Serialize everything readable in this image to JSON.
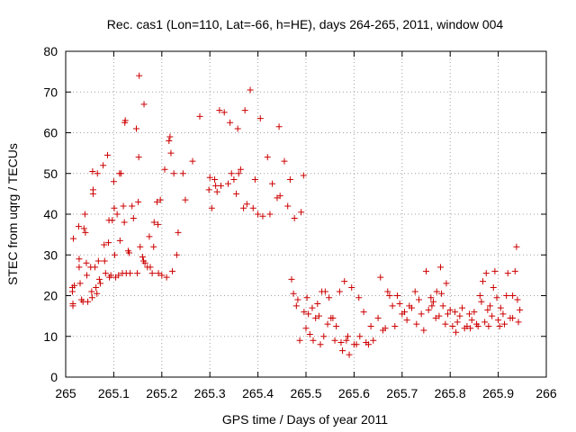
{
  "chart_data": {
    "type": "scatter",
    "title": "Rec. cas1 (Lon=110, Lat=-66, h=HE), days 264-265, 2011, window 004",
    "xlabel": "GPS time / Days of year 2011",
    "ylabel": "STEC from uqrg / TECUs",
    "xlim": [
      265,
      266
    ],
    "ylim": [
      0,
      80
    ],
    "xticks": [
      265,
      265.1,
      265.2,
      265.3,
      265.4,
      265.5,
      265.6,
      265.7,
      265.8,
      265.9,
      266
    ],
    "xtick_labels": [
      "265",
      "265.1",
      "265.2",
      "265.3",
      "265.4",
      "265.5",
      "265.6",
      "265.7",
      "265.8",
      "265.9",
      "266"
    ],
    "yticks": [
      0,
      10,
      20,
      30,
      40,
      50,
      60,
      70,
      80
    ],
    "ytick_labels": [
      "0",
      "10",
      "20",
      "30",
      "40",
      "50",
      "60",
      "70",
      "80"
    ],
    "grid": true,
    "marker": "+",
    "color": "#cc0000",
    "series": [
      {
        "name": "STEC",
        "points": [
          [
            265.016,
            34
          ],
          [
            265.014,
            22
          ],
          [
            265.014,
            21
          ],
          [
            265.015,
            18
          ],
          [
            265.015,
            17.5
          ],
          [
            265.018,
            22.5
          ],
          [
            265.027,
            37
          ],
          [
            265.028,
            29
          ],
          [
            265.028,
            27
          ],
          [
            265.03,
            23
          ],
          [
            265.033,
            19
          ],
          [
            265.036,
            18.5
          ],
          [
            265.038,
            36.5
          ],
          [
            265.04,
            40
          ],
          [
            265.041,
            35.5
          ],
          [
            265.043,
            28
          ],
          [
            265.044,
            25
          ],
          [
            265.046,
            18.5
          ],
          [
            265.052,
            27
          ],
          [
            265.054,
            21
          ],
          [
            265.055,
            19.5
          ],
          [
            265.056,
            50.5
          ],
          [
            265.057,
            46
          ],
          [
            265.057,
            45
          ],
          [
            265.061,
            27
          ],
          [
            265.063,
            22
          ],
          [
            265.065,
            20.5
          ],
          [
            265.066,
            50
          ],
          [
            265.068,
            28.5
          ],
          [
            265.07,
            24
          ],
          [
            265.072,
            23
          ],
          [
            265.078,
            52
          ],
          [
            265.08,
            32.5
          ],
          [
            265.081,
            28.5
          ],
          [
            265.083,
            25.5
          ],
          [
            265.087,
            54.5
          ],
          [
            265.089,
            33
          ],
          [
            265.09,
            38.5
          ],
          [
            265.091,
            24.5
          ],
          [
            265.094,
            25
          ],
          [
            265.097,
            38.5
          ],
          [
            265.1,
            48
          ],
          [
            265.101,
            41.5
          ],
          [
            265.102,
            30
          ],
          [
            265.104,
            24.5
          ],
          [
            265.107,
            40
          ],
          [
            265.11,
            25
          ],
          [
            265.112,
            50
          ],
          [
            265.113,
            33.5
          ],
          [
            265.115,
            50
          ],
          [
            265.118,
            25.5
          ],
          [
            265.12,
            42
          ],
          [
            265.122,
            38
          ],
          [
            265.123,
            62.5
          ],
          [
            265.124,
            63
          ],
          [
            265.126,
            25.5
          ],
          [
            265.13,
            31
          ],
          [
            265.132,
            30.5
          ],
          [
            265.134,
            25.5
          ],
          [
            265.138,
            42
          ],
          [
            265.141,
            39
          ],
          [
            265.147,
            61
          ],
          [
            265.149,
            25.5
          ],
          [
            265.151,
            43
          ],
          [
            265.152,
            54
          ],
          [
            265.153,
            74
          ],
          [
            265.155,
            32
          ],
          [
            265.16,
            29.5
          ],
          [
            265.162,
            28.5
          ],
          [
            265.163,
            67
          ],
          [
            265.165,
            28
          ],
          [
            265.17,
            27
          ],
          [
            265.174,
            34.5
          ],
          [
            265.176,
            27
          ],
          [
            265.18,
            25.5
          ],
          [
            265.183,
            32
          ],
          [
            265.184,
            38
          ],
          [
            265.19,
            43
          ],
          [
            265.192,
            37.5
          ],
          [
            265.193,
            25.5
          ],
          [
            265.197,
            43.5
          ],
          [
            265.2,
            25
          ],
          [
            265.206,
            51
          ],
          [
            265.21,
            24.5
          ],
          [
            265.215,
            58
          ],
          [
            265.217,
            59
          ],
          [
            265.219,
            55
          ],
          [
            265.222,
            26
          ],
          [
            265.225,
            50
          ],
          [
            265.231,
            30
          ],
          [
            265.234,
            35.5
          ],
          [
            265.244,
            50
          ],
          [
            265.249,
            43.5
          ],
          [
            265.264,
            53
          ],
          [
            265.279,
            64
          ],
          [
            265.298,
            46
          ],
          [
            265.3,
            49
          ],
          [
            265.304,
            41.5
          ],
          [
            265.31,
            48.5
          ],
          [
            265.312,
            47
          ],
          [
            265.315,
            45.5
          ],
          [
            265.32,
            65.5
          ],
          [
            265.323,
            47
          ],
          [
            265.33,
            65
          ],
          [
            265.338,
            47.5
          ],
          [
            265.342,
            62.5
          ],
          [
            265.345,
            50
          ],
          [
            265.35,
            48.5
          ],
          [
            265.355,
            45
          ],
          [
            265.358,
            61
          ],
          [
            265.36,
            50
          ],
          [
            265.364,
            51
          ],
          [
            265.37,
            41.5
          ],
          [
            265.373,
            65.5
          ],
          [
            265.377,
            42.5
          ],
          [
            265.384,
            70.5
          ],
          [
            265.39,
            41.5
          ],
          [
            265.394,
            48.5
          ],
          [
            265.4,
            40
          ],
          [
            265.405,
            63.5
          ],
          [
            265.41,
            39.5
          ],
          [
            265.42,
            54
          ],
          [
            265.425,
            40
          ],
          [
            265.43,
            47.5
          ],
          [
            265.44,
            44
          ],
          [
            265.444,
            61.5
          ],
          [
            265.446,
            44.5
          ],
          [
            265.455,
            53
          ],
          [
            265.462,
            42
          ],
          [
            265.467,
            48.5
          ],
          [
            265.47,
            24
          ],
          [
            265.474,
            20.5
          ],
          [
            265.476,
            39
          ],
          [
            265.48,
            17.5
          ],
          [
            265.483,
            19
          ],
          [
            265.487,
            9
          ],
          [
            265.49,
            40.5
          ],
          [
            265.495,
            49.5
          ],
          [
            265.496,
            16
          ],
          [
            265.5,
            12
          ],
          [
            265.502,
            19.5
          ],
          [
            265.505,
            15.5
          ],
          [
            265.508,
            10.5
          ],
          [
            265.513,
            17
          ],
          [
            265.515,
            9
          ],
          [
            265.52,
            14.5
          ],
          [
            265.524,
            18
          ],
          [
            265.527,
            15
          ],
          [
            265.53,
            8
          ],
          [
            265.533,
            21
          ],
          [
            265.537,
            10
          ],
          [
            265.54,
            21
          ],
          [
            265.545,
            13
          ],
          [
            265.548,
            19.5
          ],
          [
            265.552,
            14.5
          ],
          [
            265.556,
            14.5
          ],
          [
            265.56,
            9
          ],
          [
            265.563,
            12.5
          ],
          [
            265.57,
            21
          ],
          [
            265.573,
            8.5
          ],
          [
            265.576,
            6.5
          ],
          [
            265.58,
            23.5
          ],
          [
            265.584,
            9
          ],
          [
            265.587,
            10
          ],
          [
            265.59,
            5.5
          ],
          [
            265.595,
            22
          ],
          [
            265.6,
            8
          ],
          [
            265.605,
            8
          ],
          [
            265.61,
            19.5
          ],
          [
            265.612,
            10
          ],
          [
            265.62,
            16
          ],
          [
            265.625,
            8.5
          ],
          [
            265.63,
            8
          ],
          [
            265.635,
            12.5
          ],
          [
            265.64,
            9
          ],
          [
            265.65,
            14.5
          ],
          [
            265.655,
            24.5
          ],
          [
            265.66,
            11.5
          ],
          [
            265.665,
            12
          ],
          [
            265.67,
            21
          ],
          [
            265.674,
            20
          ],
          [
            265.68,
            17.5
          ],
          [
            265.685,
            12.5
          ],
          [
            265.69,
            20
          ],
          [
            265.695,
            18
          ],
          [
            265.7,
            15.5
          ],
          [
            265.705,
            16
          ],
          [
            265.71,
            14
          ],
          [
            265.715,
            17.5
          ],
          [
            265.72,
            17
          ],
          [
            265.727,
            21
          ],
          [
            265.73,
            13
          ],
          [
            265.735,
            19
          ],
          [
            265.74,
            15.5
          ],
          [
            265.745,
            11.5
          ],
          [
            265.75,
            26
          ],
          [
            265.755,
            16.5
          ],
          [
            265.76,
            19.5
          ],
          [
            265.762,
            17.5
          ],
          [
            265.765,
            18.5
          ],
          [
            265.77,
            14.5
          ],
          [
            265.772,
            21
          ],
          [
            265.777,
            15
          ],
          [
            265.78,
            27
          ],
          [
            265.782,
            20.5
          ],
          [
            265.785,
            17.5
          ],
          [
            265.79,
            13
          ],
          [
            265.792,
            23
          ],
          [
            265.795,
            15.5
          ],
          [
            265.8,
            16.5
          ],
          [
            265.805,
            12.5
          ],
          [
            265.81,
            16
          ],
          [
            265.812,
            11
          ],
          [
            265.815,
            13.5
          ],
          [
            265.82,
            15
          ],
          [
            265.825,
            17
          ],
          [
            265.83,
            12
          ],
          [
            265.835,
            12.5
          ],
          [
            265.84,
            15.5
          ],
          [
            265.842,
            12
          ],
          [
            265.845,
            14
          ],
          [
            265.85,
            16
          ],
          [
            265.855,
            13
          ],
          [
            265.858,
            12.5
          ],
          [
            265.862,
            20
          ],
          [
            265.865,
            18.5
          ],
          [
            265.868,
            23.5
          ],
          [
            265.872,
            13.5
          ],
          [
            265.875,
            25.5
          ],
          [
            265.878,
            16.5
          ],
          [
            265.88,
            12.5
          ],
          [
            265.883,
            17.5
          ],
          [
            265.887,
            15
          ],
          [
            265.89,
            22
          ],
          [
            265.893,
            26
          ],
          [
            265.897,
            19.5
          ],
          [
            265.9,
            14
          ],
          [
            265.903,
            12.5
          ],
          [
            265.905,
            17
          ],
          [
            265.91,
            15.5
          ],
          [
            265.913,
            13
          ],
          [
            265.917,
            20
          ],
          [
            265.92,
            25.5
          ],
          [
            265.925,
            14.5
          ],
          [
            265.93,
            14.5
          ],
          [
            265.935,
            26
          ],
          [
            265.938,
            32
          ],
          [
            265.94,
            19
          ],
          [
            265.942,
            13.5
          ],
          [
            265.945,
            16.5
          ],
          [
            265.93,
            20
          ]
        ]
      }
    ]
  }
}
